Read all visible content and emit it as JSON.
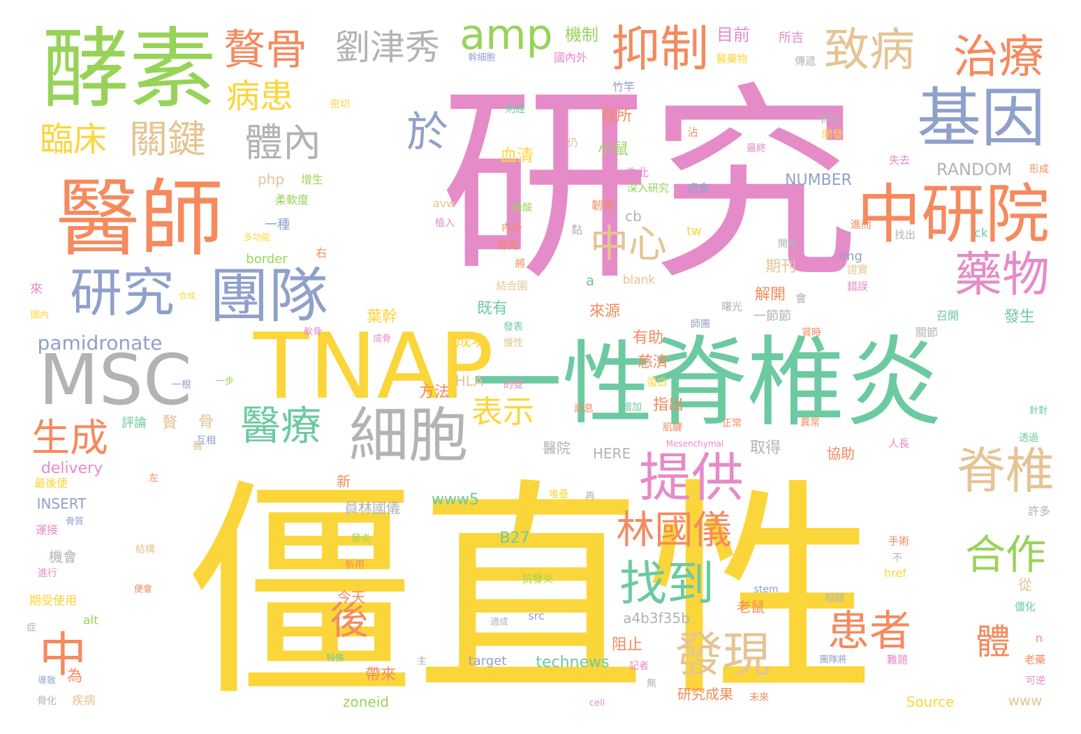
{
  "palette": {
    "pink": "#e58bc8",
    "yellow": "#fbd63a",
    "green": "#98d359",
    "teal": "#6ccaa0",
    "orange": "#f58a5e",
    "blue": "#8fa0cb",
    "tan": "#e5c494",
    "gray": "#b3b3b3"
  },
  "words": [
    {
      "text": "研究",
      "color": "pink"
    },
    {
      "text": "僵直性",
      "color": "yellow"
    },
    {
      "text": "脊椎炎",
      "color": "teal"
    },
    {
      "text": "一性",
      "color": "teal"
    },
    {
      "text": "TNAP",
      "color": "yellow"
    },
    {
      "text": "酵素",
      "color": "green"
    },
    {
      "text": "醫師",
      "color": "orange"
    },
    {
      "text": "MSC",
      "color": "gray"
    },
    {
      "text": "中研院",
      "color": "orange"
    },
    {
      "text": "基因",
      "color": "blue"
    },
    {
      "text": "研究",
      "color": "blue"
    },
    {
      "text": "團隊",
      "color": "blue"
    },
    {
      "text": "細胞",
      "color": "gray"
    },
    {
      "text": "抑制",
      "color": "orange"
    },
    {
      "text": "治療",
      "color": "orange"
    },
    {
      "text": "致病",
      "color": "tan"
    },
    {
      "text": "贅骨",
      "color": "orange"
    },
    {
      "text": "amp",
      "color": "green"
    },
    {
      "text": "劉津秀",
      "color": "gray"
    },
    {
      "text": "藥物",
      "color": "pink"
    },
    {
      "text": "脊椎",
      "color": "tan"
    },
    {
      "text": "提供",
      "color": "pink"
    },
    {
      "text": "發現",
      "color": "tan"
    },
    {
      "text": "林國儀",
      "color": "orange"
    },
    {
      "text": "找到",
      "color": "teal"
    },
    {
      "text": "醫療",
      "color": "teal"
    },
    {
      "text": "中心",
      "color": "tan"
    },
    {
      "text": "合作",
      "color": "green"
    },
    {
      "text": "患者",
      "color": "orange"
    },
    {
      "text": "體內",
      "color": "gray"
    },
    {
      "text": "關鍵",
      "color": "tan"
    },
    {
      "text": "臨床",
      "color": "yellow"
    },
    {
      "text": "病患",
      "color": "yellow"
    },
    {
      "text": "於",
      "color": "blue"
    },
    {
      "text": "生成",
      "color": "orange"
    },
    {
      "text": "中",
      "color": "orange"
    },
    {
      "text": "表示",
      "color": "yellow"
    },
    {
      "text": "後",
      "color": "orange"
    },
    {
      "text": "體",
      "color": "orange"
    },
    {
      "text": "pamidronate",
      "color": "blue"
    },
    {
      "text": "RANDOM",
      "color": "gray"
    },
    {
      "text": "NUMBER",
      "color": "blue"
    },
    {
      "text": "機制",
      "color": "green"
    },
    {
      "text": "目前",
      "color": "pink"
    },
    {
      "text": "所吉",
      "color": "pink"
    },
    {
      "text": "傳遞",
      "color": "gray"
    },
    {
      "text": "國內外",
      "color": "pink"
    },
    {
      "text": "醫藥物",
      "color": "yellow"
    },
    {
      "text": "幹細胞",
      "color": "blue"
    },
    {
      "text": "竹竿",
      "color": "blue"
    },
    {
      "text": "密切",
      "color": "yellow"
    },
    {
      "text": "則經",
      "color": "teal"
    },
    {
      "text": "現有",
      "color": "pink"
    },
    {
      "text": "有效",
      "color": "gray"
    },
    {
      "text": "開發",
      "color": "yellow"
    },
    {
      "text": "院所",
      "color": "orange"
    },
    {
      "text": "血清",
      "color": "yellow"
    },
    {
      "text": "小鼠",
      "color": "green"
    },
    {
      "text": "最終",
      "color": "pink"
    },
    {
      "text": "失去",
      "color": "pink"
    },
    {
      "text": "形成",
      "color": "orange"
    },
    {
      "text": "仍",
      "color": "tan"
    },
    {
      "text": "為此",
      "color": "pink"
    },
    {
      "text": "深入研究",
      "color": "green"
    },
    {
      "text": "處會",
      "color": "blue"
    },
    {
      "text": "增生",
      "color": "green"
    },
    {
      "text": "php",
      "color": "tan"
    },
    {
      "text": "柔軟度",
      "color": "green"
    },
    {
      "text": "avw",
      "color": "tan"
    },
    {
      "text": "磷酸",
      "color": "green"
    },
    {
      "text": "韌帶",
      "color": "orange"
    },
    {
      "text": "cb",
      "color": "gray"
    },
    {
      "text": "黏",
      "color": "gray"
    },
    {
      "text": "一種",
      "color": "blue"
    },
    {
      "text": "tw",
      "color": "yellow"
    },
    {
      "text": "植入",
      "color": "pink"
    },
    {
      "text": "內外",
      "color": "orange"
    },
    {
      "text": "進而",
      "color": "orange"
    },
    {
      "text": "找出",
      "color": "gray"
    },
    {
      "text": "ck",
      "color": "teal"
    },
    {
      "text": "多功能",
      "color": "yellow"
    },
    {
      "text": "骨間",
      "color": "orange"
    },
    {
      "text": "開始",
      "color": "gray"
    },
    {
      "text": "img",
      "color": "blue"
    },
    {
      "text": "證實",
      "color": "tan"
    },
    {
      "text": "border",
      "color": "green"
    },
    {
      "text": "右",
      "color": "orange"
    },
    {
      "text": "將",
      "color": "orange"
    },
    {
      "text": "期刊",
      "color": "tan"
    },
    {
      "text": "錯誤",
      "color": "pink"
    },
    {
      "text": "來",
      "color": "pink"
    },
    {
      "text": "合成",
      "color": "yellow"
    },
    {
      "text": "結合園",
      "color": "tan"
    },
    {
      "text": "a",
      "color": "teal"
    },
    {
      "text": "blank",
      "color": "tan"
    },
    {
      "text": "解開",
      "color": "orange"
    },
    {
      "text": "會",
      "color": "gray"
    },
    {
      "text": "國內",
      "color": "yellow"
    },
    {
      "text": "葉幹",
      "color": "yellow"
    },
    {
      "text": "既有",
      "color": "teal"
    },
    {
      "text": "來源",
      "color": "orange"
    },
    {
      "text": "曙光",
      "color": "gray"
    },
    {
      "text": "一節節",
      "color": "gray"
    },
    {
      "text": "召開",
      "color": "teal"
    },
    {
      "text": "發生",
      "color": "teal"
    },
    {
      "text": "軟骨",
      "color": "pink"
    },
    {
      "text": "師團",
      "color": "blue"
    },
    {
      "text": "發表",
      "color": "teal"
    },
    {
      "text": "成骨",
      "color": "pink"
    },
    {
      "text": "賞時",
      "color": "orange"
    },
    {
      "text": "關節",
      "color": "gray"
    },
    {
      "text": "成功",
      "color": "yellow"
    },
    {
      "text": "有助",
      "color": "orange"
    },
    {
      "text": "慢性",
      "color": "tan"
    },
    {
      "text": "慈濟",
      "color": "orange"
    },
    {
      "text": "一根",
      "color": "blue"
    },
    {
      "text": "一步",
      "color": "green"
    },
    {
      "text": "HLA",
      "color": "tan"
    },
    {
      "text": "的雙",
      "color": "pink"
    },
    {
      "text": "蛋白",
      "color": "yellow"
    },
    {
      "text": "方法",
      "color": "orange"
    },
    {
      "text": "指出",
      "color": "orange"
    },
    {
      "text": "訊息",
      "color": "orange"
    },
    {
      "text": "增加",
      "color": "teal"
    },
    {
      "text": "肌腱",
      "color": "orange"
    },
    {
      "text": "正常",
      "color": "orange"
    },
    {
      "text": "針對",
      "color": "teal"
    },
    {
      "text": "評論",
      "color": "teal"
    },
    {
      "text": "贅",
      "color": "tan"
    },
    {
      "text": "骨",
      "color": "tan"
    },
    {
      "text": "互相",
      "color": "blue"
    },
    {
      "text": "醫院",
      "color": "gray"
    },
    {
      "text": "Mesenchymal",
      "color": "pink"
    },
    {
      "text": "異常",
      "color": "orange"
    },
    {
      "text": "人長",
      "color": "pink"
    },
    {
      "text": "取得",
      "color": "gray"
    },
    {
      "text": "協助",
      "color": "orange"
    },
    {
      "text": "透過",
      "color": "teal"
    },
    {
      "text": "HERE",
      "color": "gray"
    },
    {
      "text": "delivery",
      "color": "pink"
    },
    {
      "text": "新",
      "color": "orange"
    },
    {
      "text": "左",
      "color": "orange"
    },
    {
      "text": "最後便",
      "color": "yellow"
    },
    {
      "text": "INSERT",
      "color": "blue"
    },
    {
      "text": "員林國儀",
      "color": "gray"
    },
    {
      "text": "www5",
      "color": "teal"
    },
    {
      "text": "堆疊",
      "color": "yellow"
    },
    {
      "text": "再",
      "color": "gray"
    },
    {
      "text": "許多",
      "color": "gray"
    },
    {
      "text": "骨質",
      "color": "blue"
    },
    {
      "text": "運接",
      "color": "pink"
    },
    {
      "text": "B27",
      "color": "teal"
    },
    {
      "text": "手術",
      "color": "orange"
    },
    {
      "text": "機會",
      "color": "gray"
    },
    {
      "text": "發炎",
      "color": "green"
    },
    {
      "text": "結構",
      "color": "tan"
    },
    {
      "text": "新用",
      "color": "orange"
    },
    {
      "text": "不",
      "color": "gray"
    },
    {
      "text": "進行",
      "color": "pink"
    },
    {
      "text": "抗發炎",
      "color": "green"
    },
    {
      "text": "href",
      "color": "yellow"
    },
    {
      "text": "今天",
      "color": "orange"
    },
    {
      "text": "stem",
      "color": "blue"
    },
    {
      "text": "從",
      "color": "tan"
    },
    {
      "text": "便會",
      "color": "orange"
    },
    {
      "text": "期受使用",
      "color": "yellow"
    },
    {
      "text": "相關",
      "color": "gray"
    },
    {
      "text": "僵化",
      "color": "teal"
    },
    {
      "text": "src",
      "color": "blue"
    },
    {
      "text": "alt",
      "color": "green"
    },
    {
      "text": "適成",
      "color": "gray"
    },
    {
      "text": "老鼠",
      "color": "orange"
    },
    {
      "text": "症",
      "color": "gray"
    },
    {
      "text": "a4b3f35b",
      "color": "gray"
    },
    {
      "text": "n",
      "color": "orange"
    },
    {
      "text": "阻止",
      "color": "orange"
    },
    {
      "text": "technews",
      "color": "teal"
    },
    {
      "text": "target",
      "color": "blue"
    },
    {
      "text": "記者",
      "color": "pink"
    },
    {
      "text": "主",
      "color": "gray"
    },
    {
      "text": "特殊",
      "color": "teal"
    },
    {
      "text": "團隊將",
      "color": "blue"
    },
    {
      "text": "難題",
      "color": "pink"
    },
    {
      "text": "老藥",
      "color": "orange"
    },
    {
      "text": "為",
      "color": "orange"
    },
    {
      "text": "導致",
      "color": "blue"
    },
    {
      "text": "帶來",
      "color": "orange"
    },
    {
      "text": "無",
      "color": "gray"
    },
    {
      "text": "未來",
      "color": "orange"
    },
    {
      "text": "研究成果",
      "color": "orange"
    },
    {
      "text": "可逆",
      "color": "pink"
    },
    {
      "text": "www",
      "color": "tan"
    },
    {
      "text": "骨化",
      "color": "gray"
    },
    {
      "text": "疾病",
      "color": "tan"
    },
    {
      "text": "zoneid",
      "color": "green"
    },
    {
      "text": "cell",
      "color": "pink"
    },
    {
      "text": "Source",
      "color": "yellow"
    },
    {
      "text": "沾",
      "color": "orange"
    },
    {
      "text": "醫",
      "color": "tan"
    }
  ]
}
